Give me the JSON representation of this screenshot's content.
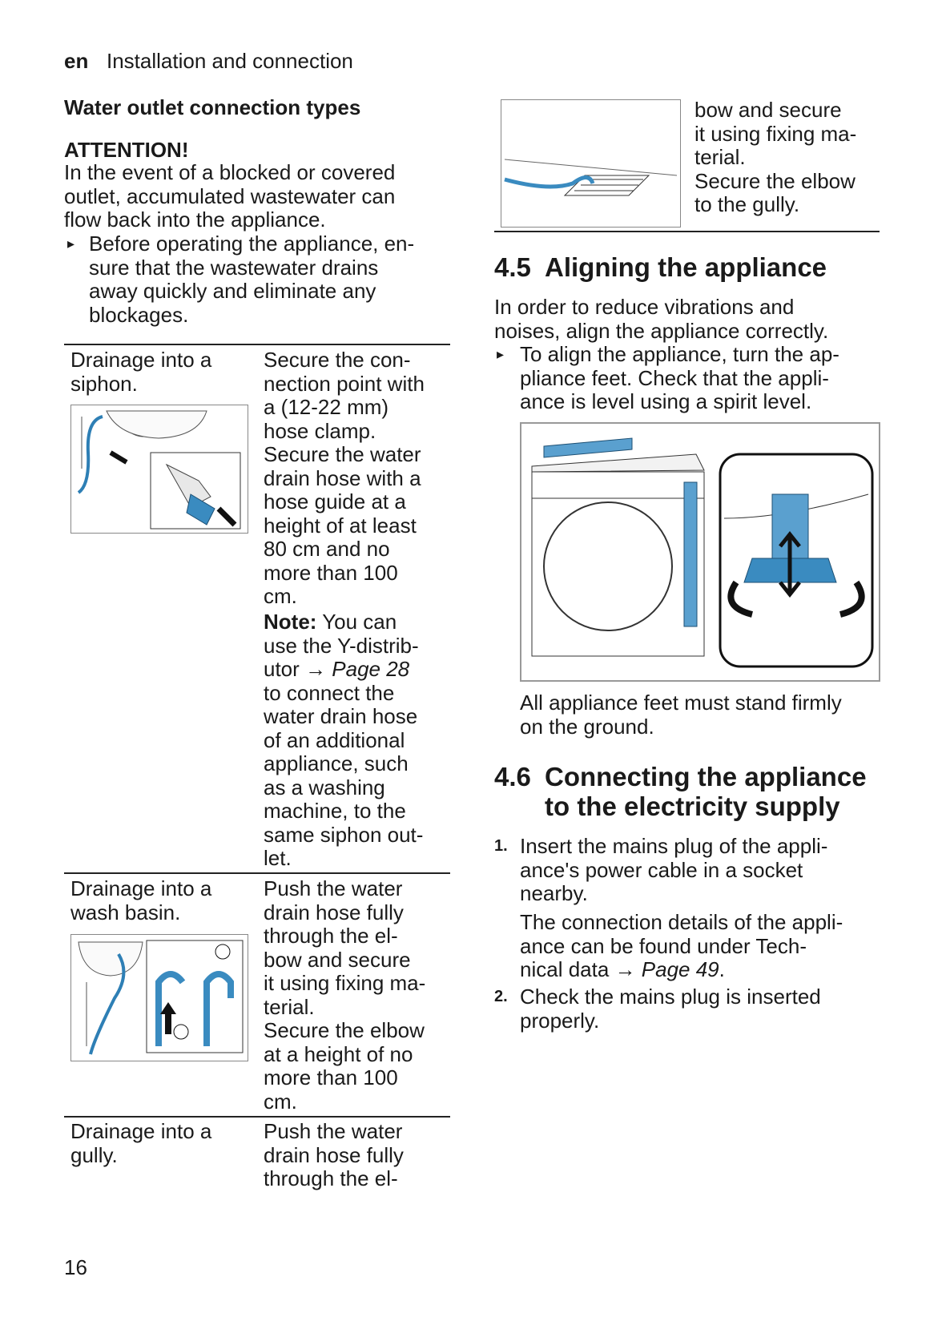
{
  "header": {
    "lang": "en",
    "section": "Installation and connection"
  },
  "left": {
    "heading": "Water outlet connection types",
    "attention": {
      "title": "ATTENTION!",
      "lines": [
        "In the event of a blocked or covered",
        "outlet, accumulated wastewater can",
        "flow back into the appliance."
      ],
      "bullet": "▸",
      "bullet_lines": [
        "Before operating the appliance, en-",
        "sure that the wastewater drains",
        "away quickly and eliminate any",
        "blockages."
      ]
    },
    "table": {
      "rows": [
        {
          "label_lines": [
            "Drainage into a",
            "siphon."
          ],
          "text_lines": [
            "Secure the con-",
            "nection point with",
            "a (12-22 mm)",
            "hose clamp.",
            "Secure the water",
            "drain hose with a",
            "hose guide at a",
            "height of at least",
            "80 cm and no",
            "more than 100",
            "cm."
          ],
          "note_lines": [
            [
              {
                "b": "Note:"
              },
              "You can"
            ],
            "use the Y-distrib-",
            [
              "utor →",
              {
                "i": "Page 28"
              }
            ],
            "to connect the",
            "water drain hose",
            "of an additional",
            "appliance, such",
            "as a washing",
            "machine, to the",
            "same siphon out-",
            "let."
          ]
        },
        {
          "label_lines": [
            "Drainage into a",
            "wash basin."
          ],
          "text_lines": [
            "Push the water",
            "drain hose fully",
            "through the el-",
            "bow and secure",
            "it using fixing ma-",
            "terial.",
            "Secure the elbow",
            "at a height of no",
            "more than 100",
            "cm."
          ]
        },
        {
          "label_lines": [
            "Drainage into a",
            "gully."
          ],
          "text_lines": [
            "Push the water",
            "drain hose fully",
            "through the el-"
          ]
        }
      ]
    }
  },
  "right": {
    "continued_lines": [
      "bow and secure",
      "it using fixing ma-",
      "terial.",
      "Secure the elbow",
      "to the gully."
    ],
    "section_45": {
      "number": "4.5",
      "title": "Aligning the appliance",
      "lines": [
        "In order to reduce vibrations and",
        "noises, align the appliance correctly."
      ],
      "bullet": "▸",
      "bullet_lines": [
        "To align the appliance, turn the ap-",
        "pliance feet. Check that the appli-",
        "ance is level using a spirit level."
      ],
      "caption_lines": [
        "All appliance feet must stand firmly",
        "on the ground."
      ]
    },
    "section_46": {
      "number": "4.6",
      "title_lines": [
        "Connecting the appliance",
        "to the electricity supply"
      ],
      "steps": [
        {
          "number": "1.",
          "lines": [
            "Insert the mains plug of the appli-",
            "ance's power cable in a socket",
            "nearby."
          ],
          "detail_lines": [
            "The connection details of the appli-",
            "ance can be found under Tech-",
            [
              "nical data →",
              {
                "i": "Page 49"
              },
              "."
            ]
          ]
        },
        {
          "number": "2.",
          "lines": [
            "Check the mains plug is inserted",
            "properly."
          ]
        }
      ]
    }
  },
  "page_number": "16"
}
